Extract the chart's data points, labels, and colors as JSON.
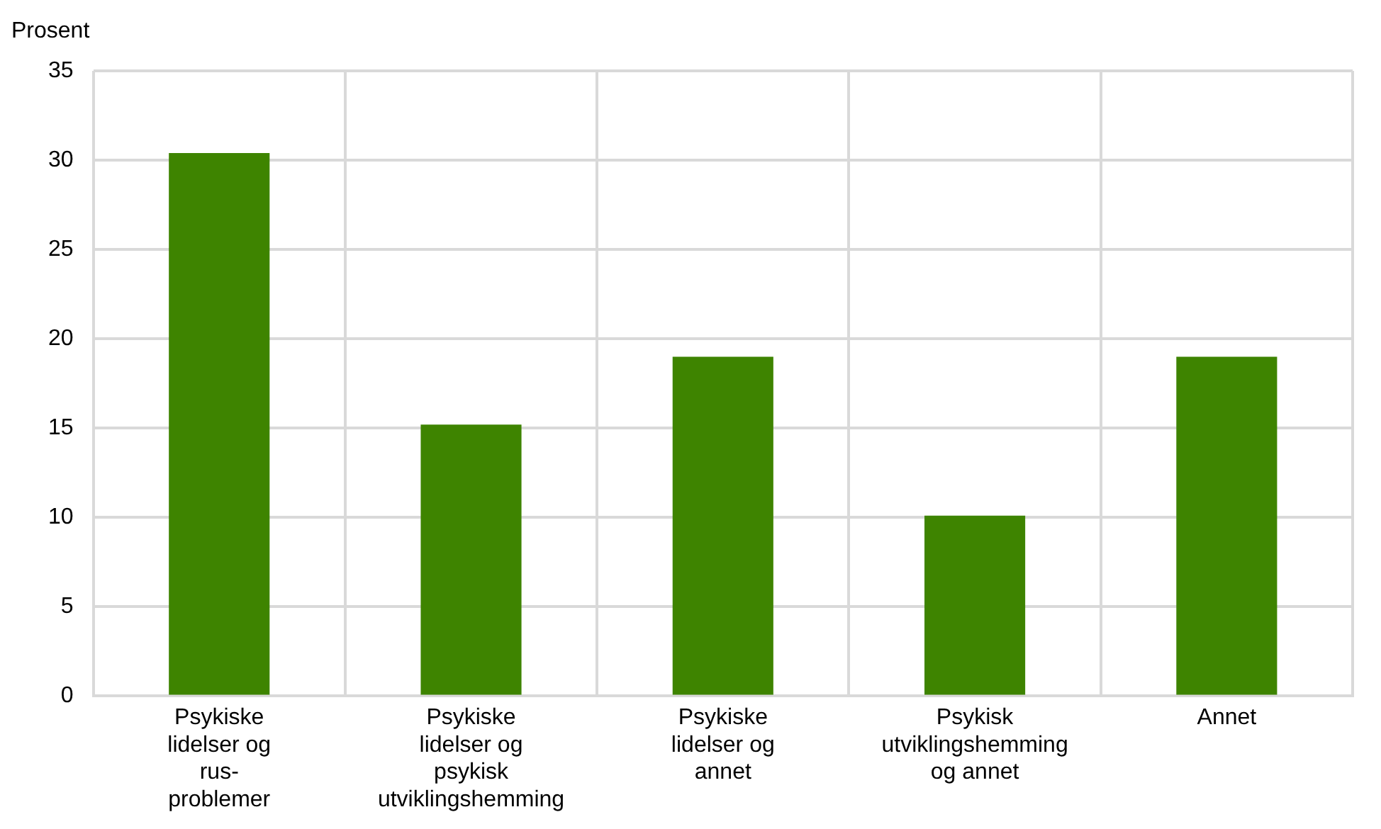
{
  "chart_data": {
    "type": "bar",
    "ylabel": "Prosent",
    "categories": [
      "Psykiske lidelser og rus-problemer",
      "Psykiske lidelser og psykisk utviklingshemming",
      "Psykiske lidelser og annet",
      "Psykisk utviklingshemming og annet",
      "Annet"
    ],
    "values": [
      30.4,
      15.2,
      19,
      10.1,
      19
    ],
    "color": "#3e8400",
    "ylim": [
      0,
      35
    ],
    "yticks": [
      0,
      5,
      10,
      15,
      20,
      25,
      30,
      35
    ],
    "grid": true,
    "legend": false
  }
}
